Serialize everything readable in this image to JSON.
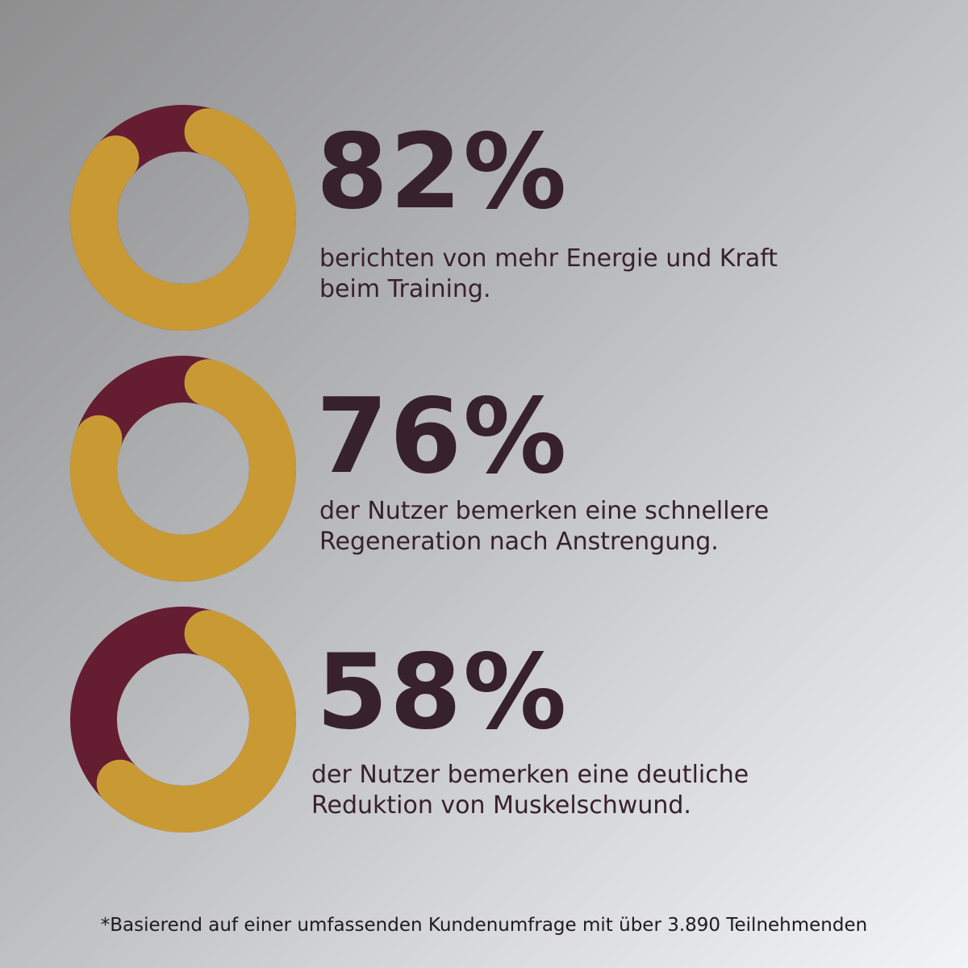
{
  "colors": {
    "ring_fill": "#c99a34",
    "ring_track": "#651d32",
    "text": "#37212a"
  },
  "stats": [
    {
      "value": "82%",
      "line1": "berichten von mehr Energie und Kraft",
      "line2": "beim Training."
    },
    {
      "value": "76%",
      "line1": "der Nutzer bemerken eine schnellere",
      "line2": "Regeneration nach Anstrengung."
    },
    {
      "value": "58%",
      "line1": "der Nutzer bemerken eine deutliche",
      "line2": "Reduktion von Muskelschwund."
    }
  ],
  "footnote": "*Basierend auf einer umfassenden Kundenumfrage mit über 3.890 Teilnehmenden",
  "chart_data": [
    {
      "type": "pie",
      "values": [
        82,
        18
      ]
    },
    {
      "type": "pie",
      "values": [
        76,
        24
      ]
    },
    {
      "type": "pie",
      "values": [
        58,
        42
      ]
    }
  ]
}
